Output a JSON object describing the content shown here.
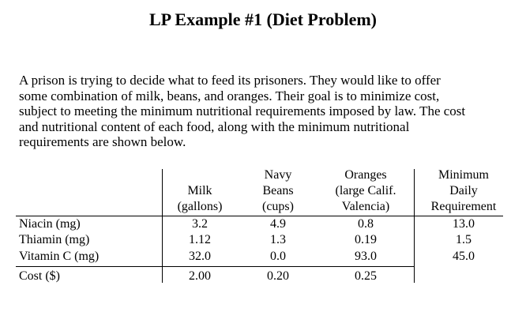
{
  "title": "LP Example #1 (Diet Problem)",
  "intro_lines": [
    "A prison is trying to decide what to feed its prisoners. They would like to offer",
    "some combination of milk, beans, and oranges. Their goal is to minimize cost,",
    "subject to meeting the minimum nutritional requirements imposed by law. The cost",
    "and nutritional content of each food, along with the minimum nutritional",
    "requirements are shown below."
  ],
  "table": {
    "headers": {
      "milk": [
        "Milk",
        "(gallons)"
      ],
      "beans": [
        "Navy",
        "Beans",
        "(cups)"
      ],
      "oranges": [
        "Oranges",
        "(large Calif.",
        "Valencia)"
      ],
      "minimum": [
        "Minimum",
        "Daily",
        "Requirement"
      ]
    },
    "rows": [
      {
        "label": "Niacin (mg)",
        "milk": "3.2",
        "beans": "4.9",
        "oranges": "0.8",
        "minimum": "13.0"
      },
      {
        "label": "Thiamin (mg)",
        "milk": "1.12",
        "beans": "1.3",
        "oranges": "0.19",
        "minimum": "1.5"
      },
      {
        "label": "Vitamin C (mg)",
        "milk": "32.0",
        "beans": "0.0",
        "oranges": "93.0",
        "minimum": "45.0"
      },
      {
        "label": "Cost ($)",
        "milk": "2.00",
        "beans": "0.20",
        "oranges": "0.25",
        "minimum": ""
      }
    ]
  }
}
